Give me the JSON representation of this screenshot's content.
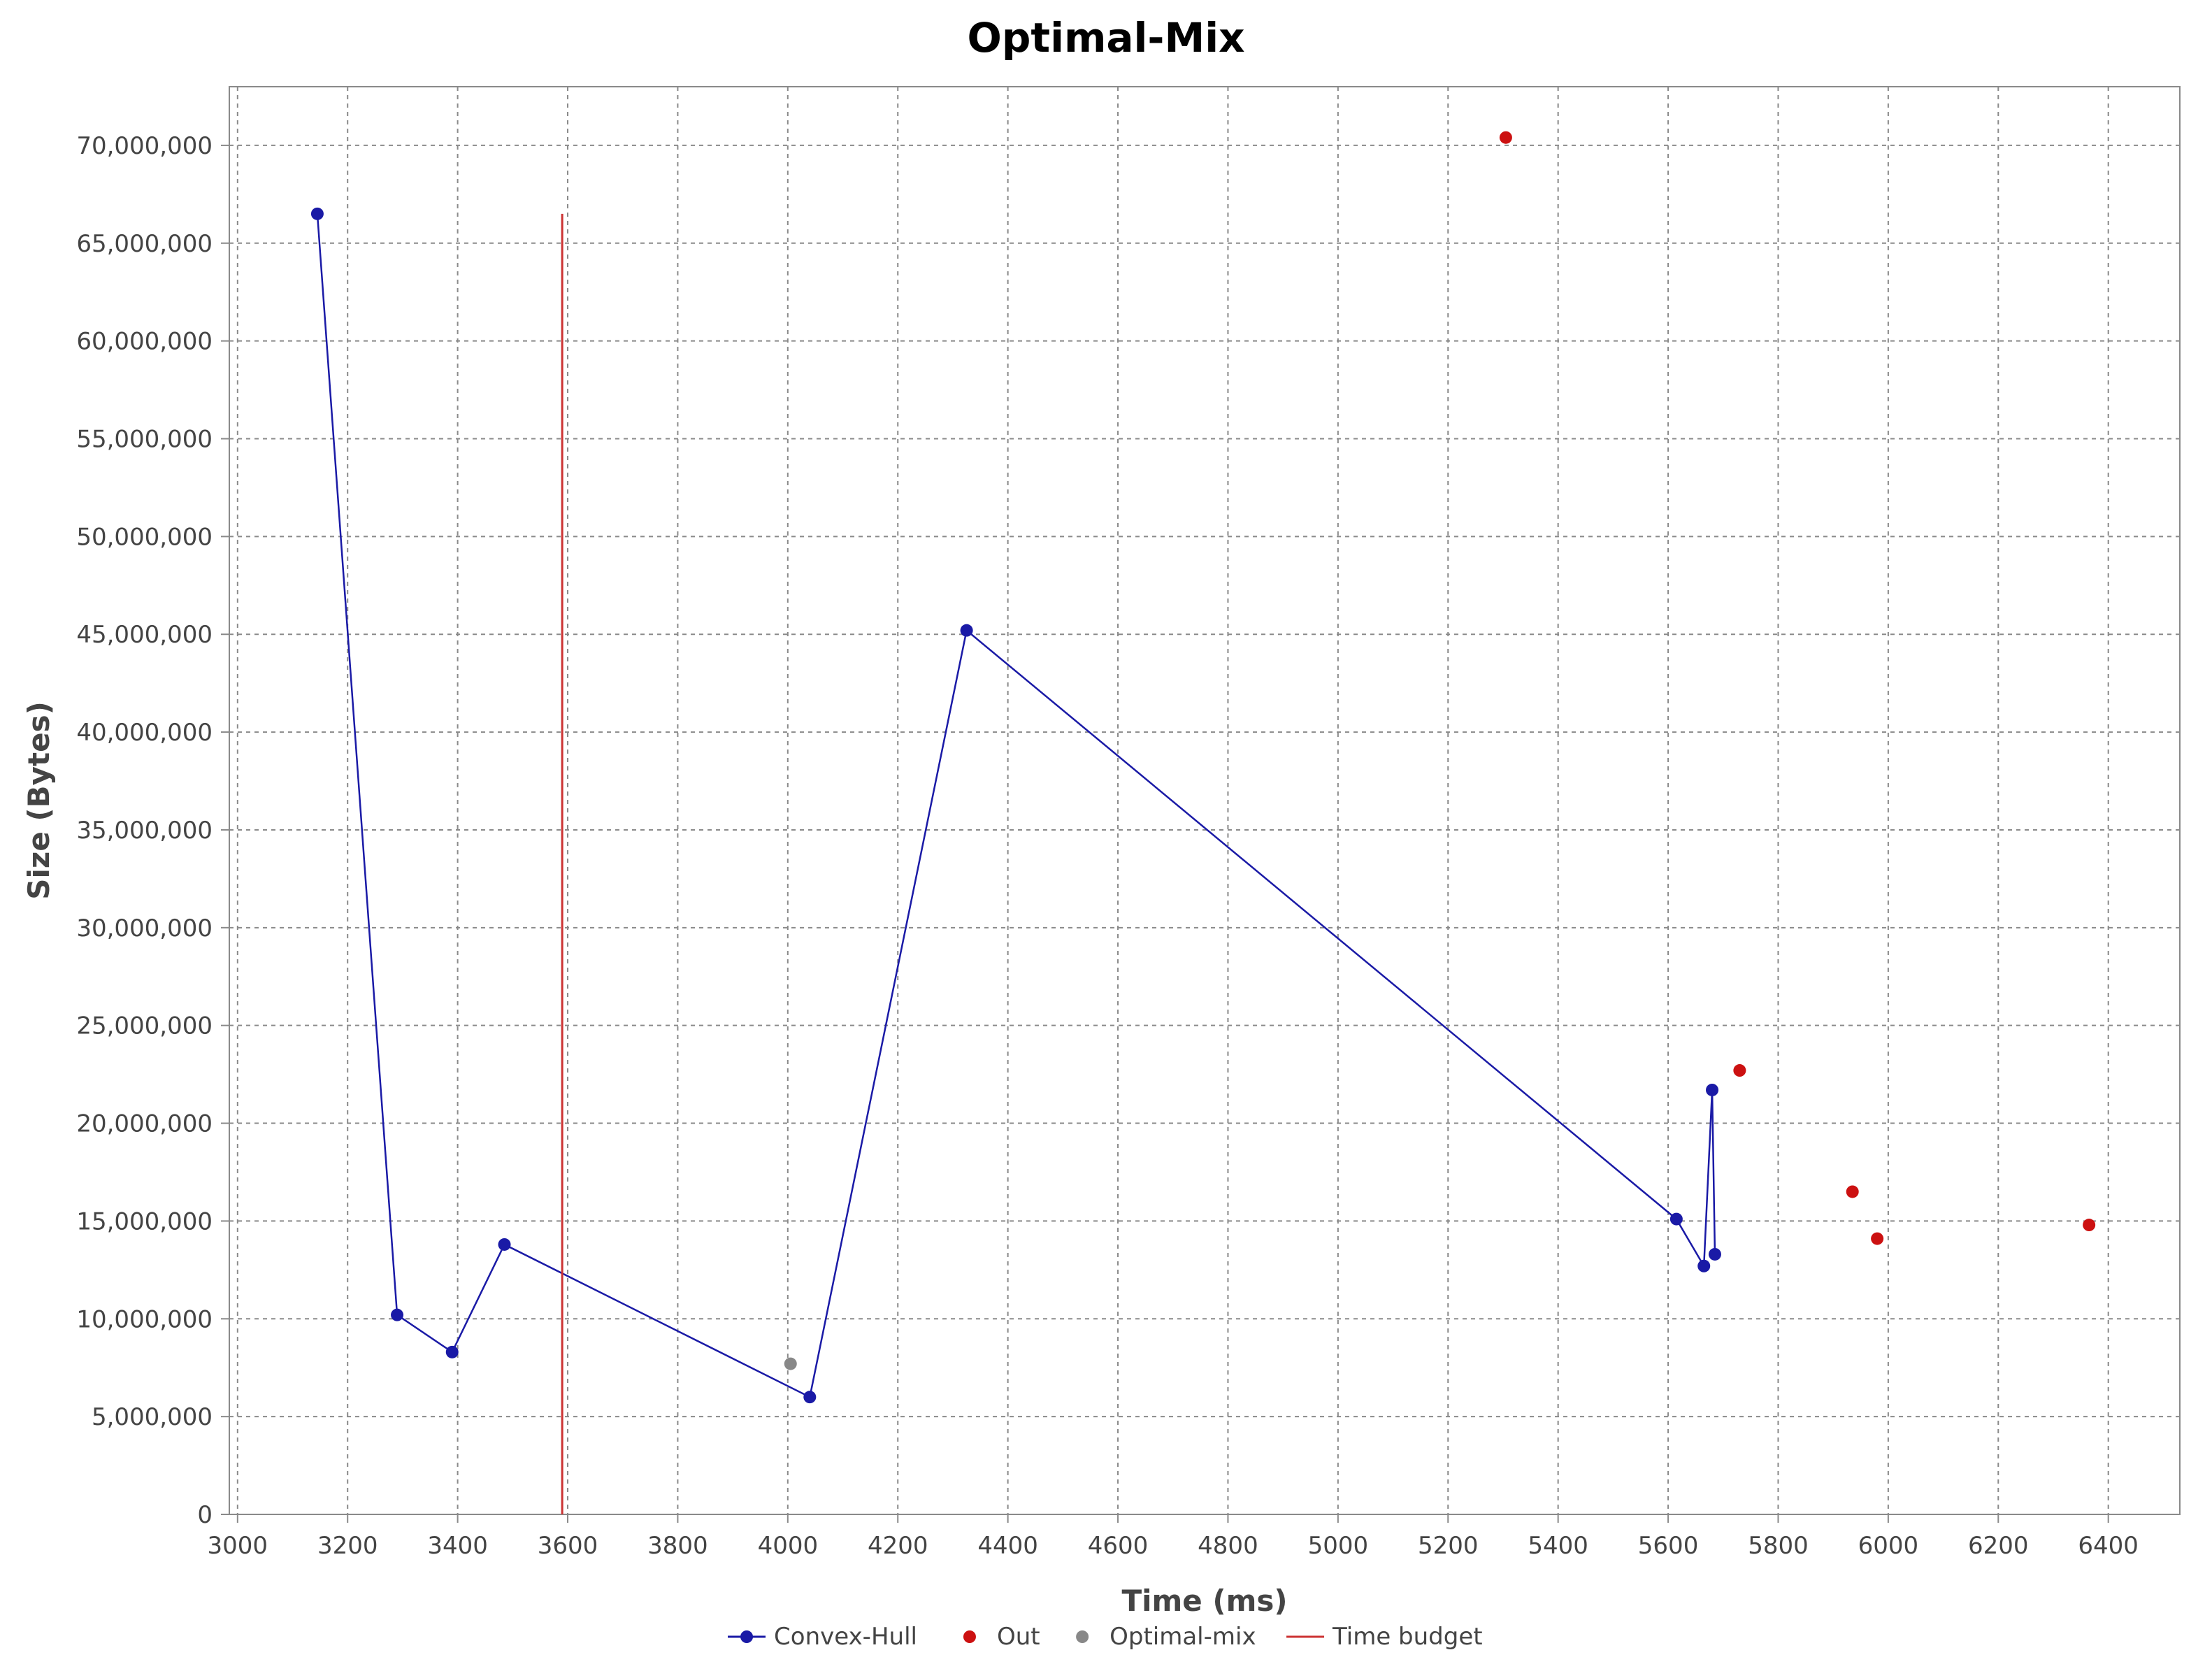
{
  "chart_data": {
    "type": "scatter",
    "title": "Optimal-Mix",
    "xlabel": "Time (ms)",
    "ylabel": "Size (Bytes)",
    "xlim": [
      2985,
      6530
    ],
    "ylim": [
      0,
      73000000
    ],
    "x_ticks": [
      3000,
      3200,
      3400,
      3600,
      3800,
      4000,
      4200,
      4400,
      4600,
      4800,
      5000,
      5200,
      5400,
      5600,
      5800,
      6000,
      6200,
      6400
    ],
    "x_tick_labels": [
      "3000",
      "3200",
      "3400",
      "3600",
      "3800",
      "4000",
      "4200",
      "4400",
      "4600",
      "4800",
      "5000",
      "5200",
      "5400",
      "5600",
      "5800",
      "6000",
      "6200",
      "6400"
    ],
    "y_ticks": [
      0,
      5000000,
      10000000,
      15000000,
      20000000,
      25000000,
      30000000,
      35000000,
      40000000,
      45000000,
      50000000,
      55000000,
      60000000,
      65000000,
      70000000
    ],
    "y_tick_labels": [
      "0",
      "5,000,000",
      "10,000,000",
      "15,000,000",
      "20,000,000",
      "25,000,000",
      "30,000,000",
      "35,000,000",
      "40,000,000",
      "45,000,000",
      "50,000,000",
      "55,000,000",
      "60,000,000",
      "65,000,000",
      "70,000,000"
    ],
    "grid": true,
    "legend_position": "bottom",
    "series": [
      {
        "name": "Convex-Hull",
        "kind": "line-markers",
        "color": "#1a1aa6",
        "points": [
          {
            "x": 3145,
            "y": 66500000
          },
          {
            "x": 3290,
            "y": 10200000
          },
          {
            "x": 3390,
            "y": 8300000
          },
          {
            "x": 3485,
            "y": 13800000
          },
          {
            "x": 4040,
            "y": 6000000
          },
          {
            "x": 4325,
            "y": 45200000
          },
          {
            "x": 5615,
            "y": 15100000
          },
          {
            "x": 5665,
            "y": 12700000
          },
          {
            "x": 5680,
            "y": 21700000
          },
          {
            "x": 5685,
            "y": 13300000
          }
        ]
      },
      {
        "name": "Out",
        "kind": "markers",
        "color": "#cc1111",
        "points": [
          {
            "x": 5305,
            "y": 70400000
          },
          {
            "x": 5730,
            "y": 22700000
          },
          {
            "x": 5935,
            "y": 16500000
          },
          {
            "x": 5980,
            "y": 14100000
          },
          {
            "x": 6365,
            "y": 14800000
          }
        ]
      },
      {
        "name": "Optimal-mix",
        "kind": "markers",
        "color": "#888888",
        "points": [
          {
            "x": 4005,
            "y": 7700000
          }
        ]
      },
      {
        "name": "Time budget",
        "kind": "line",
        "color": "#cc3333",
        "points": [
          {
            "x": 3590,
            "y": 0
          },
          {
            "x": 3590,
            "y": 66500000
          }
        ]
      }
    ]
  }
}
